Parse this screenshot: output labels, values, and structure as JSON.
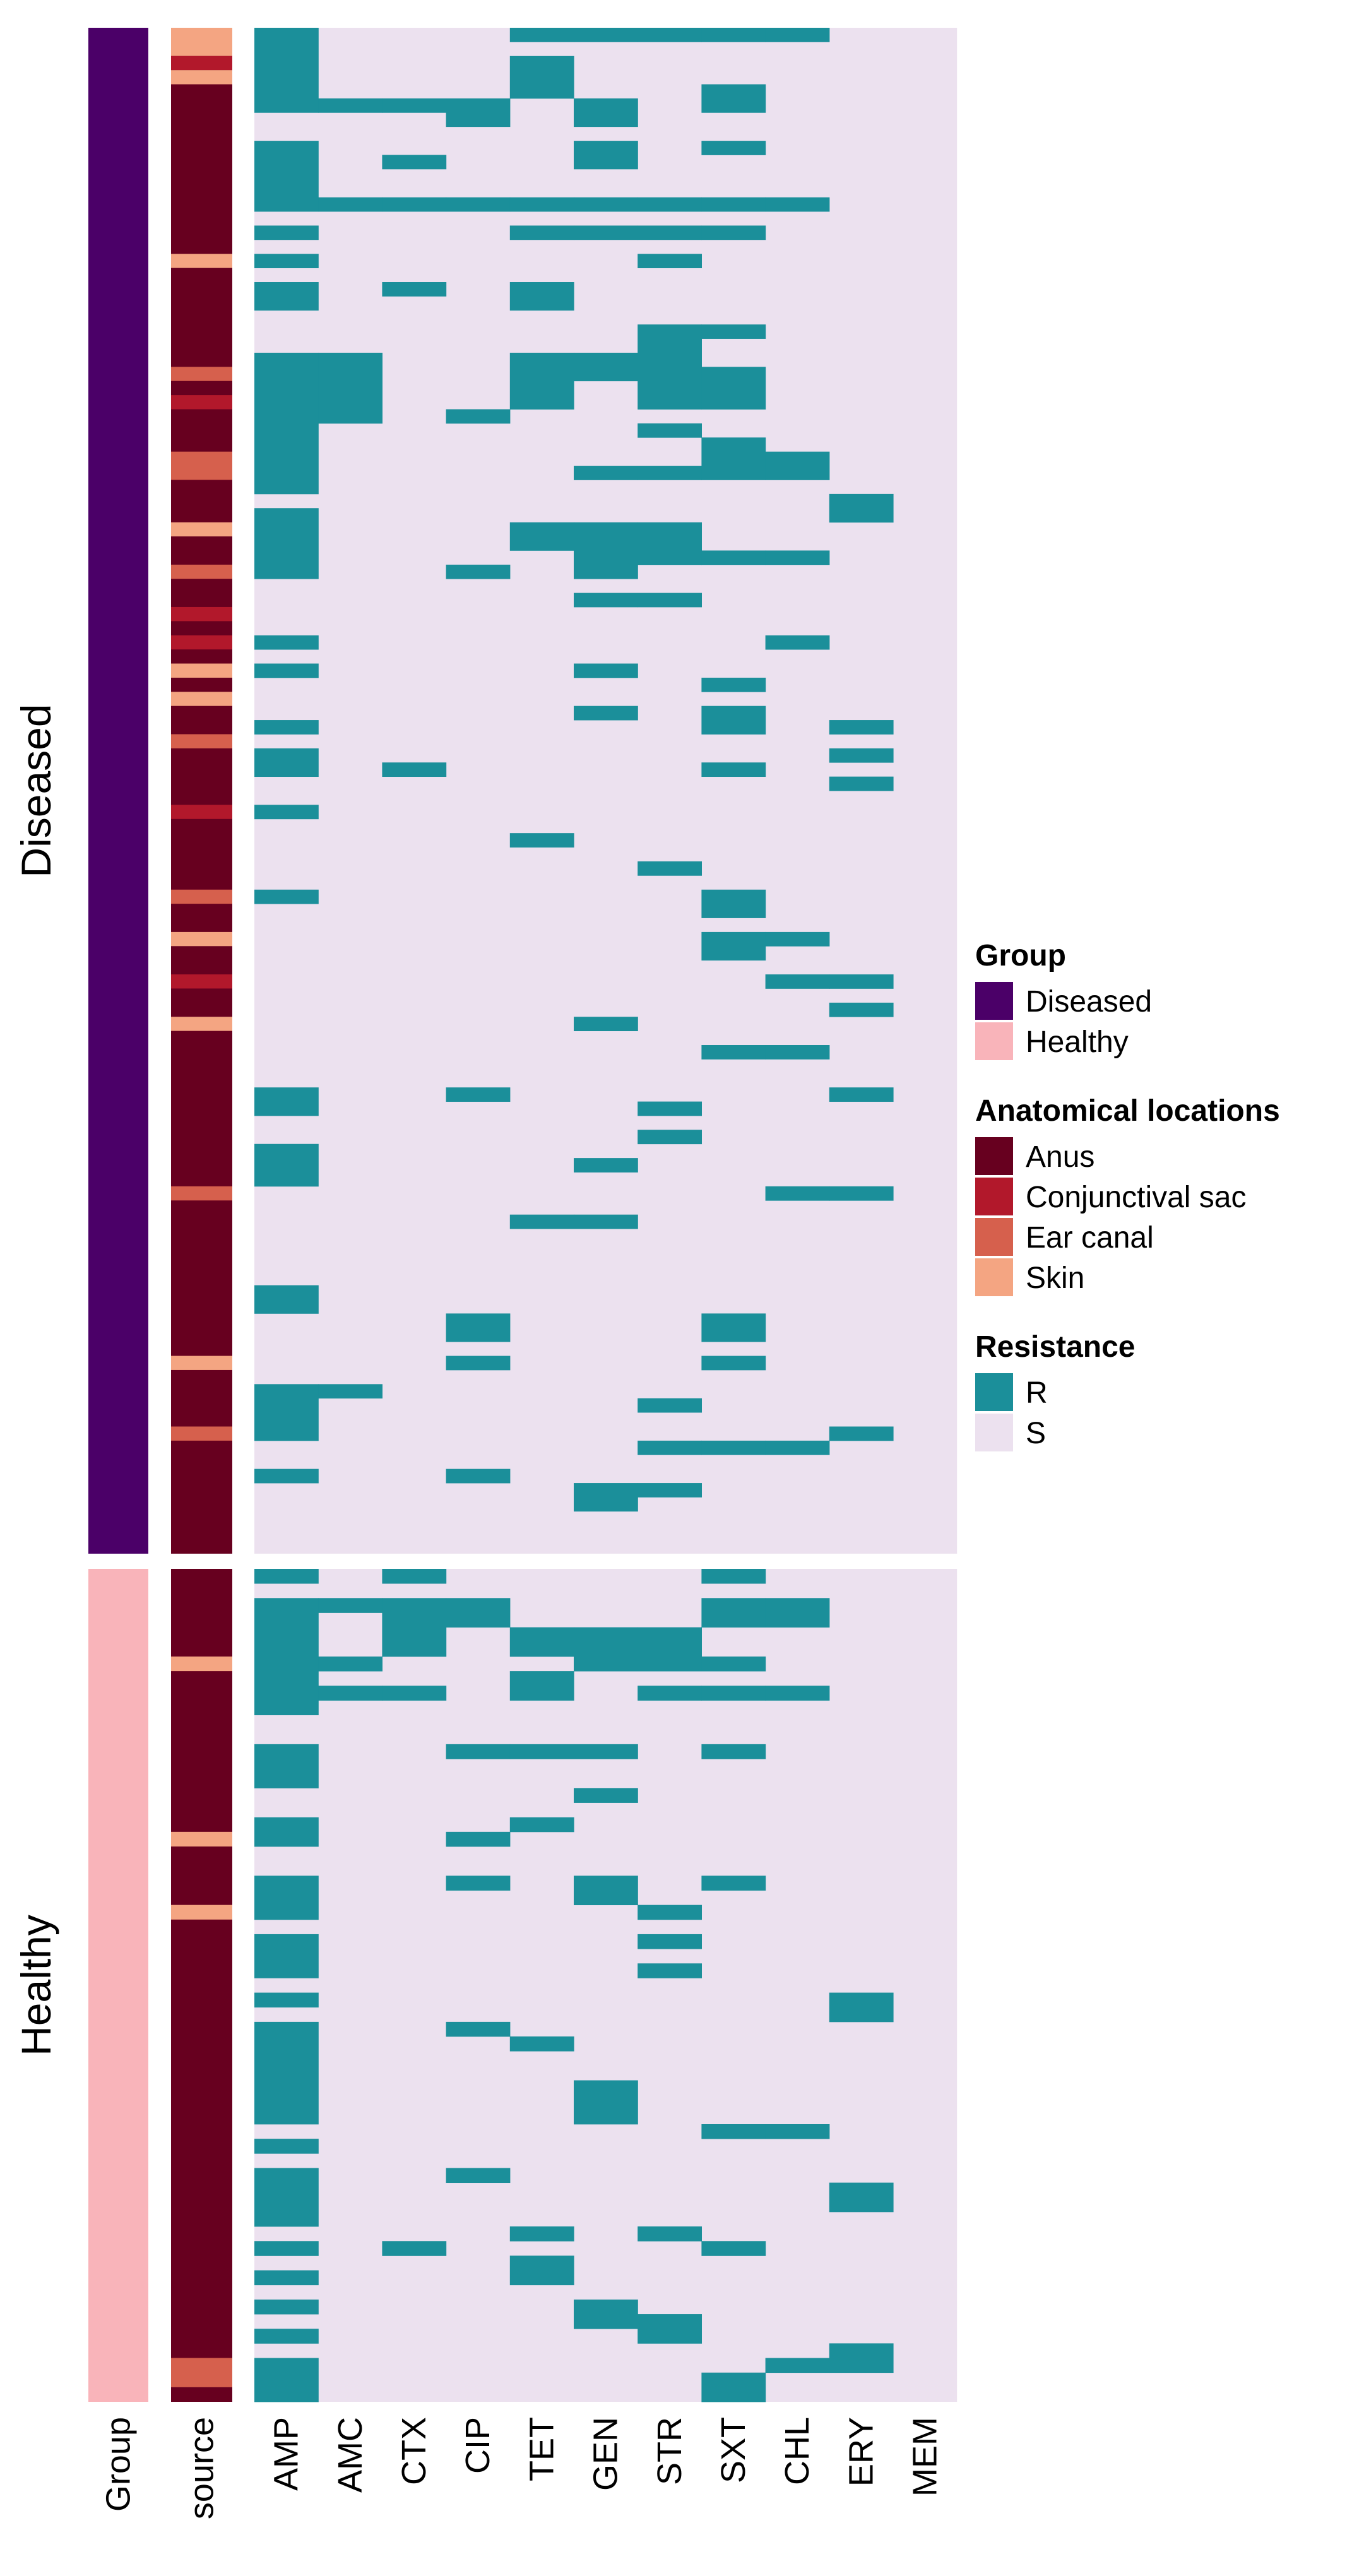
{
  "chart_data": {
    "type": "heatmap",
    "title": "",
    "annotation_columns": [
      "Group",
      "source"
    ],
    "antibiotics": [
      "AMP",
      "AMC",
      "CTX",
      "CIP",
      "TET",
      "GEN",
      "STR",
      "SXT",
      "CHL",
      "ERY",
      "MEM"
    ],
    "row_splits": [
      "Diseased",
      "Healthy"
    ],
    "legend": {
      "placement": "right",
      "groups": [
        {
          "title": "Group",
          "items": [
            {
              "label": "Diseased",
              "color": "#4b0068"
            },
            {
              "label": "Healthy",
              "color": "#f9b4ba"
            }
          ]
        },
        {
          "title": "Anatomical locations",
          "items": [
            {
              "label": "Anus",
              "color": "#67001f"
            },
            {
              "label": "Conjunctival sac",
              "color": "#b2182b"
            },
            {
              "label": "Ear canal",
              "color": "#d6604d"
            },
            {
              "label": "Skin",
              "color": "#f4a582"
            }
          ]
        },
        {
          "title": "Resistance",
          "items": [
            {
              "label": "R",
              "color": "#1b8f9a"
            },
            {
              "label": "S",
              "color": "#ece1ef"
            }
          ]
        }
      ]
    },
    "diseased": {
      "n_rows": 108,
      "source_segments": [
        {
          "location": "Skin",
          "rows": [
            0,
            1
          ]
        },
        {
          "location": "Conjunctival sac",
          "rows": [
            2,
            2
          ]
        },
        {
          "location": "Skin",
          "rows": [
            3,
            3
          ]
        },
        {
          "location": "Skin",
          "rows": [
            16,
            16
          ]
        },
        {
          "location": "Ear canal",
          "rows": [
            24,
            24
          ]
        },
        {
          "location": "Conjunctival sac",
          "rows": [
            26,
            26
          ]
        },
        {
          "location": "Ear canal",
          "rows": [
            30,
            31
          ]
        },
        {
          "location": "Skin",
          "rows": [
            35,
            35
          ]
        },
        {
          "location": "Ear canal",
          "rows": [
            38,
            38
          ]
        },
        {
          "location": "Conjunctival sac",
          "rows": [
            41,
            41
          ]
        },
        {
          "location": "Conjunctival sac",
          "rows": [
            43,
            43
          ]
        },
        {
          "location": "Skin",
          "rows": [
            45,
            45
          ]
        },
        {
          "location": "Skin",
          "rows": [
            47,
            47
          ]
        },
        {
          "location": "Ear canal",
          "rows": [
            50,
            50
          ]
        },
        {
          "location": "Conjunctival sac",
          "rows": [
            55,
            55
          ]
        },
        {
          "location": "Ear canal",
          "rows": [
            61,
            61
          ]
        },
        {
          "location": "Skin",
          "rows": [
            64,
            64
          ]
        },
        {
          "location": "Conjunctival sac",
          "rows": [
            67,
            67
          ]
        },
        {
          "location": "Skin",
          "rows": [
            70,
            70
          ]
        },
        {
          "location": "Ear canal",
          "rows": [
            82,
            82
          ]
        },
        {
          "location": "Skin",
          "rows": [
            94,
            94
          ]
        },
        {
          "location": "Ear canal",
          "rows": [
            99,
            99
          ]
        }
      ],
      "resistant": [
        {
          "antibiotic": "TET",
          "rows": [
            [
              1,
              1
            ]
          ]
        },
        {
          "antibiotic": "GEN",
          "rows": [
            [
              1,
              1
            ]
          ]
        },
        {
          "antibiotic": "STR",
          "rows": [
            [
              1,
              1
            ]
          ]
        },
        {
          "antibiotic": "SXT",
          "rows": [
            [
              1,
              1
            ]
          ]
        },
        {
          "antibiotic": "CHL",
          "rows": [
            [
              1,
              1
            ]
          ]
        },
        {
          "antibiotic": "AMP",
          "rows": [
            [
              1,
              6
            ],
            [
              9,
              13
            ],
            [
              15,
              15
            ],
            [
              17,
              17
            ],
            [
              19,
              20
            ],
            [
              24,
              33
            ],
            [
              35,
              39
            ],
            [
              44,
              44
            ],
            [
              46,
              46
            ],
            [
              50,
              50
            ],
            [
              52,
              53
            ],
            [
              56,
              56
            ],
            [
              62,
              62
            ],
            [
              76,
              77
            ],
            [
              80,
              82
            ],
            [
              90,
              91
            ],
            [
              97,
              100
            ],
            [
              103,
              103
            ]
          ]
        },
        {
          "antibiotic": "AMC",
          "rows": [
            [
              6,
              6
            ],
            [
              13,
              13
            ],
            [
              24,
              28
            ],
            [
              97,
              97
            ]
          ]
        },
        {
          "antibiotic": "CTX",
          "rows": [
            [
              6,
              6
            ],
            [
              10,
              10
            ],
            [
              13,
              13
            ],
            [
              19,
              19
            ],
            [
              53,
              53
            ]
          ]
        },
        {
          "antibiotic": "CIP",
          "rows": [
            [
              6,
              7
            ],
            [
              13,
              13
            ],
            [
              28,
              28
            ],
            [
              39,
              39
            ],
            [
              76,
              76
            ],
            [
              92,
              93
            ],
            [
              95,
              95
            ],
            [
              103,
              103
            ]
          ]
        },
        {
          "antibiotic": "TET",
          "rows": [
            [
              3,
              5
            ],
            [
              13,
              13
            ],
            [
              15,
              15
            ],
            [
              19,
              20
            ],
            [
              24,
              27
            ],
            [
              36,
              37
            ],
            [
              58,
              58
            ],
            [
              85,
              85
            ]
          ]
        },
        {
          "antibiotic": "GEN",
          "rows": [
            [
              6,
              7
            ],
            [
              9,
              10
            ],
            [
              13,
              13
            ],
            [
              15,
              15
            ],
            [
              24,
              25
            ],
            [
              32,
              32
            ],
            [
              36,
              39
            ],
            [
              41,
              41
            ],
            [
              46,
              46
            ],
            [
              49,
              49
            ],
            [
              71,
              71
            ],
            [
              81,
              81
            ],
            [
              85,
              85
            ],
            [
              104,
              105
            ]
          ]
        },
        {
          "antibiotic": "STR",
          "rows": [
            [
              13,
              13
            ],
            [
              15,
              15
            ],
            [
              17,
              17
            ],
            [
              22,
              27
            ],
            [
              29,
              29
            ],
            [
              32,
              32
            ],
            [
              36,
              38
            ],
            [
              41,
              41
            ],
            [
              60,
              60
            ],
            [
              77,
              77
            ],
            [
              79,
              79
            ],
            [
              98,
              98
            ],
            [
              101,
              101
            ],
            [
              104,
              104
            ]
          ]
        },
        {
          "antibiotic": "SXT",
          "rows": [
            [
              5,
              6
            ],
            [
              9,
              9
            ],
            [
              13,
              13
            ],
            [
              15,
              15
            ],
            [
              22,
              22
            ],
            [
              25,
              27
            ],
            [
              30,
              32
            ],
            [
              38,
              38
            ],
            [
              47,
              47
            ],
            [
              49,
              50
            ],
            [
              53,
              53
            ],
            [
              62,
              63
            ],
            [
              65,
              66
            ],
            [
              73,
              73
            ],
            [
              92,
              93
            ],
            [
              95,
              95
            ],
            [
              101,
              101
            ]
          ]
        },
        {
          "antibiotic": "CHL",
          "rows": [
            [
              13,
              13
            ],
            [
              31,
              32
            ],
            [
              38,
              38
            ],
            [
              44,
              44
            ],
            [
              65,
              65
            ],
            [
              68,
              68
            ],
            [
              73,
              73
            ],
            [
              83,
              83
            ],
            [
              101,
              101
            ]
          ]
        },
        {
          "antibiotic": "ERY",
          "rows": [
            [
              34,
              35
            ],
            [
              50,
              50
            ],
            [
              52,
              52
            ],
            [
              54,
              54
            ],
            [
              68,
              68
            ],
            [
              70,
              70
            ],
            [
              76,
              76
            ],
            [
              83,
              83
            ],
            [
              100,
              100
            ]
          ]
        }
      ]
    },
    "healthy": {
      "n_rows": 57,
      "source_segments": [
        {
          "location": "Skin",
          "rows": [
            6,
            6
          ]
        },
        {
          "location": "Skin",
          "rows": [
            18,
            18
          ]
        },
        {
          "location": "Skin",
          "rows": [
            23,
            23
          ]
        },
        {
          "location": "Ear canal",
          "rows": [
            54,
            55
          ]
        }
      ],
      "resistant": [
        {
          "antibiotic": "AMP",
          "rows": [
            [
              1,
              1
            ],
            [
              3,
              10
            ],
            [
              13,
              15
            ],
            [
              18,
              19
            ],
            [
              22,
              24
            ],
            [
              26,
              28
            ],
            [
              30,
              30
            ],
            [
              32,
              38
            ],
            [
              40,
              40
            ],
            [
              42,
              45
            ],
            [
              47,
              47
            ],
            [
              49,
              49
            ],
            [
              51,
              51
            ],
            [
              53,
              53
            ],
            [
              55,
              57
            ]
          ]
        },
        {
          "antibiotic": "AMC",
          "rows": [
            [
              3,
              3
            ],
            [
              7,
              7
            ],
            [
              9,
              9
            ]
          ]
        },
        {
          "antibiotic": "CTX",
          "rows": [
            [
              1,
              1
            ],
            [
              3,
              6
            ],
            [
              9,
              9
            ],
            [
              47,
              47
            ]
          ]
        },
        {
          "antibiotic": "CIP",
          "rows": [
            [
              3,
              4
            ],
            [
              13,
              13
            ],
            [
              19,
              19
            ],
            [
              22,
              22
            ],
            [
              32,
              32
            ],
            [
              42,
              42
            ]
          ]
        },
        {
          "antibiotic": "TET",
          "rows": [
            [
              5,
              6
            ],
            [
              8,
              9
            ],
            [
              13,
              13
            ],
            [
              18,
              18
            ],
            [
              33,
              33
            ],
            [
              46,
              46
            ],
            [
              48,
              49
            ]
          ]
        },
        {
          "antibiotic": "GEN",
          "rows": [
            [
              5,
              7
            ],
            [
              13,
              13
            ],
            [
              16,
              16
            ],
            [
              22,
              23
            ],
            [
              36,
              38
            ],
            [
              51,
              52
            ]
          ]
        },
        {
          "antibiotic": "STR",
          "rows": [
            [
              5,
              7
            ],
            [
              9,
              9
            ],
            [
              24,
              24
            ],
            [
              26,
              26
            ],
            [
              28,
              28
            ],
            [
              46,
              46
            ],
            [
              52,
              53
            ]
          ]
        },
        {
          "antibiotic": "SXT",
          "rows": [
            [
              1,
              1
            ],
            [
              3,
              4
            ],
            [
              7,
              7
            ],
            [
              9,
              9
            ],
            [
              13,
              13
            ],
            [
              22,
              22
            ],
            [
              39,
              39
            ],
            [
              47,
              47
            ],
            [
              56,
              57
            ]
          ]
        },
        {
          "antibiotic": "CHL",
          "rows": [
            [
              3,
              4
            ],
            [
              9,
              9
            ],
            [
              39,
              39
            ],
            [
              55,
              55
            ]
          ]
        },
        {
          "antibiotic": "ERY",
          "rows": [
            [
              30,
              31
            ],
            [
              43,
              44
            ],
            [
              54,
              55
            ]
          ]
        }
      ]
    }
  }
}
